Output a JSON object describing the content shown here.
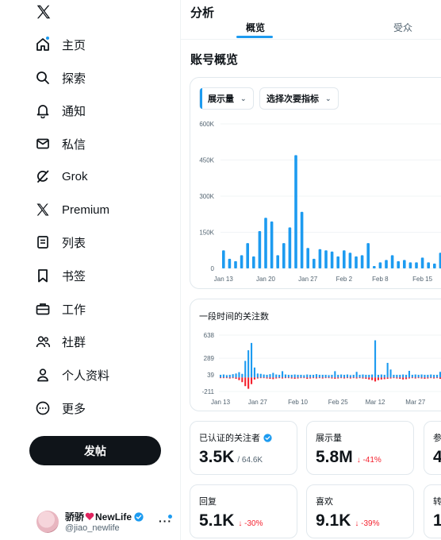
{
  "sidebar": {
    "items": [
      {
        "label": "主页",
        "icon": "home-icon",
        "badge": true
      },
      {
        "label": "探索",
        "icon": "search-icon"
      },
      {
        "label": "通知",
        "icon": "bell-icon"
      },
      {
        "label": "私信",
        "icon": "mail-icon"
      },
      {
        "label": "Grok",
        "icon": "grok-icon"
      },
      {
        "label": "Premium",
        "icon": "x-logo-icon"
      },
      {
        "label": "列表",
        "icon": "list-icon"
      },
      {
        "label": "书签",
        "icon": "bookmark-icon"
      },
      {
        "label": "工作",
        "icon": "briefcase-icon"
      },
      {
        "label": "社群",
        "icon": "community-icon"
      },
      {
        "label": "个人资料",
        "icon": "person-icon"
      },
      {
        "label": "更多",
        "icon": "more-circle-icon"
      }
    ],
    "post_button": "发帖",
    "account": {
      "name": "骄骄",
      "name_suffix": "NewLife",
      "handle": "@jiao_newlife",
      "more": "···"
    }
  },
  "main": {
    "title": "分析",
    "tabs": [
      {
        "label": "概览"
      },
      {
        "label": "受众"
      }
    ],
    "section_title": "账号概览",
    "chart1": {
      "metric": "展示量",
      "secondary": "选择次要指标"
    },
    "chart2": {
      "title": "一段时间的关注数"
    },
    "stats": [
      {
        "label": "已认证的关注者",
        "value": "3.5K",
        "sub": "/ 64.6K",
        "delta": ""
      },
      {
        "label": "展示量",
        "value": "5.8M",
        "sub": "",
        "delta": "↓ -41%"
      },
      {
        "label": "参",
        "value": "4",
        "sub": "",
        "delta": ""
      },
      {
        "label": "回复",
        "value": "5.1K",
        "sub": "",
        "delta": "↓ -30%"
      },
      {
        "label": "喜欢",
        "value": "9.1K",
        "sub": "",
        "delta": "↓ -39%"
      },
      {
        "label": "转",
        "value": "1",
        "sub": "",
        "delta": ""
      }
    ]
  },
  "colors": {
    "accent": "#1d9bf0",
    "negative": "#f4212e",
    "text": "#0f1419",
    "muted": "#536471"
  },
  "chart_data": [
    {
      "type": "bar",
      "ylim": [
        0,
        600000
      ],
      "y_ticks": [
        0,
        150000,
        300000,
        450000,
        600000
      ],
      "y_tick_labels": [
        "0",
        "150K",
        "300K",
        "450K",
        "600K"
      ],
      "x_tick_labels": [
        "Jan 13",
        "Jan 20",
        "Jan 27",
        "Feb 2",
        "Feb 8",
        "Feb 15"
      ],
      "values": [
        75000,
        40000,
        30000,
        55000,
        105000,
        50000,
        155000,
        210000,
        195000,
        55000,
        105000,
        170000,
        470000,
        235000,
        85000,
        40000,
        80000,
        75000,
        70000,
        50000,
        75000,
        65000,
        50000,
        55000,
        105000,
        10000,
        25000,
        35000,
        55000,
        30000,
        35000,
        25000,
        25000,
        45000,
        25000,
        20000,
        65000,
        15000,
        25000,
        15000
      ]
    },
    {
      "type": "bar",
      "title": "一段时间的关注数",
      "ylim": [
        -211,
        638
      ],
      "y_ticks": [
        638,
        289,
        39,
        -211
      ],
      "y_tick_labels": [
        "638",
        "289",
        "39",
        "-211"
      ],
      "x_tick_labels": [
        "Jan 13",
        "Jan 27",
        "Feb 10",
        "Feb 25",
        "Mar 12",
        "Mar 27"
      ],
      "series": [
        {
          "name": "gain",
          "values": [
            40,
            45,
            35,
            40,
            50,
            60,
            80,
            55,
            250,
            410,
            520,
            150,
            60,
            55,
            45,
            40,
            50,
            70,
            45,
            40,
            95,
            45,
            40,
            40,
            45,
            40,
            40,
            35,
            45,
            40,
            40,
            50,
            40,
            40,
            40,
            35,
            40,
            95,
            40,
            45,
            40,
            45,
            35,
            40,
            85,
            40,
            45,
            40,
            40,
            45,
            560,
            40,
            45,
            40,
            220,
            120,
            40,
            40,
            40,
            45,
            40,
            100,
            40,
            45,
            40,
            45,
            40,
            40,
            45,
            40,
            40,
            85,
            40,
            45,
            40
          ]
        },
        {
          "name": "loss",
          "values": [
            -10,
            -10,
            -10,
            -15,
            -10,
            -20,
            -40,
            -70,
            -130,
            -170,
            -100,
            -30,
            -15,
            -10,
            -10,
            -15,
            -20,
            -25,
            -15,
            -10,
            -15,
            -10,
            -10,
            -15,
            -20,
            -15,
            -10,
            -10,
            -20,
            -15,
            -10,
            -15,
            -10,
            -15,
            -10,
            -10,
            -15,
            -20,
            -15,
            -10,
            -15,
            -10,
            -15,
            -10,
            -15,
            -10,
            -15,
            -20,
            -30,
            -40,
            -60,
            -40,
            -30,
            -25,
            -20,
            -15,
            -10,
            -15,
            -20,
            -30,
            -25,
            -15,
            -10,
            -15,
            -10,
            -15,
            -20,
            -15,
            -10,
            -15,
            -10,
            -20,
            -15,
            -10,
            -15
          ]
        }
      ]
    }
  ]
}
